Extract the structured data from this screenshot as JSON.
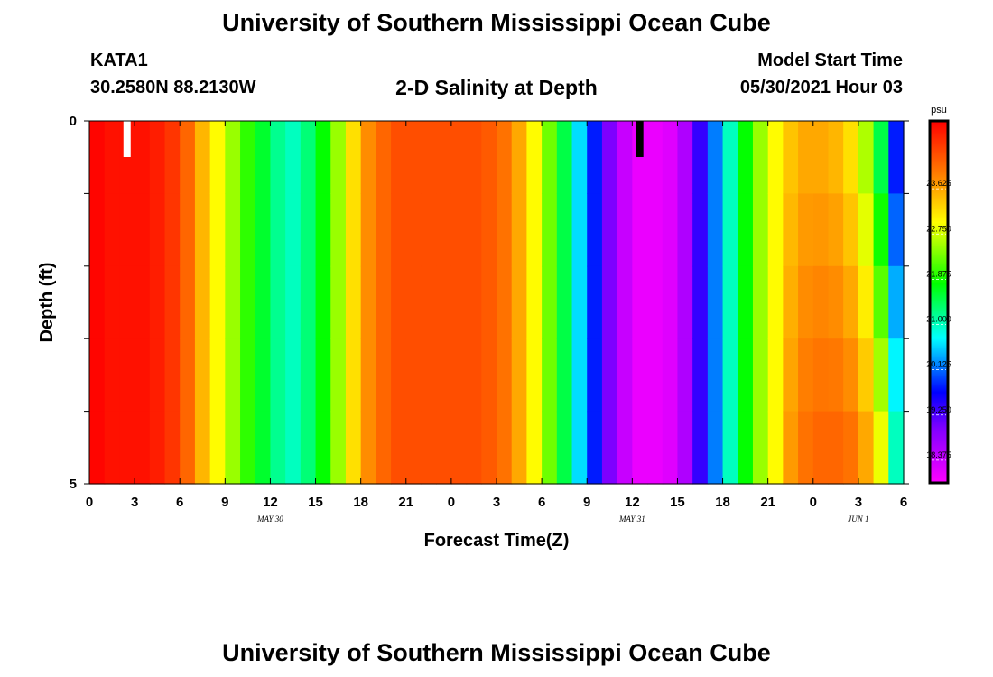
{
  "header": {
    "title": "University of Southern Mississippi Ocean Cube",
    "station_id": "KATA1",
    "coordinates": "30.2580N  88.2130W",
    "model_start_label": "Model Start Time",
    "model_start_value": "05/30/2021 Hour 03",
    "plot_title": "2-D Salinity at Depth"
  },
  "footer": {
    "title": "University of Southern Mississippi Ocean Cube"
  },
  "chart_data": {
    "type": "heatmap",
    "title": "2-D Salinity at Depth",
    "xlabel": "Forecast Time(Z)",
    "ylabel": "Depth (ft)",
    "x_tick_labels": [
      "0",
      "3",
      "6",
      "9",
      "12",
      "15",
      "18",
      "21",
      "0",
      "3",
      "6",
      "9",
      "12",
      "15",
      "18",
      "21",
      "0",
      "3",
      "6"
    ],
    "date_labels": [
      {
        "label": "MAY  30",
        "hour": 12
      },
      {
        "label": "MAY  31",
        "hour": 36
      },
      {
        "label": "JUN  1",
        "hour": 51
      }
    ],
    "y_tick_labels": [
      "0",
      "5"
    ],
    "xlim": [
      0,
      54
    ],
    "ylim": [
      0,
      5
    ],
    "colorbar": {
      "unit": "psu",
      "tick_labels": [
        "23.625",
        "22.750",
        "21.875",
        "21.000",
        "20.125",
        "19.250",
        "18.375"
      ],
      "range": [
        17.937,
        24.937
      ]
    },
    "markers": [
      {
        "hour": 2.5,
        "color": "#ffffff"
      },
      {
        "hour": 36.5,
        "color": "#000000"
      }
    ],
    "salinity_by_hour": [
      24.9,
      24.8,
      24.8,
      24.8,
      24.7,
      24.5,
      24.1,
      23.5,
      23.0,
      22.5,
      22.0,
      21.6,
      21.2,
      21.0,
      21.3,
      21.8,
      22.5,
      23.2,
      23.8,
      24.1,
      24.3,
      24.3,
      24.3,
      24.3,
      24.3,
      24.3,
      24.2,
      24.0,
      23.6,
      23.0,
      22.3,
      21.5,
      20.6,
      19.8,
      19.0,
      18.4,
      18.1,
      18.1,
      18.2,
      18.6,
      19.4,
      20.2,
      21.0,
      21.8,
      22.5,
      23.0,
      23.4,
      23.6,
      23.6,
      23.5,
      23.2,
      22.6,
      21.5,
      19.8
    ],
    "deep_adjust_by_hour": [
      0,
      0,
      0,
      0,
      0,
      0,
      0,
      0,
      0,
      0,
      0,
      0,
      0,
      0,
      0,
      0,
      0,
      0,
      0,
      0,
      0,
      0,
      0,
      0,
      0,
      0,
      0,
      0,
      0,
      0,
      0,
      0,
      0,
      0,
      0,
      0,
      0,
      0,
      0,
      0,
      0,
      0,
      0,
      0,
      0,
      0,
      0.3,
      0.4,
      0.5,
      0.6,
      0.8,
      1.0,
      1.4,
      1.2
    ]
  }
}
